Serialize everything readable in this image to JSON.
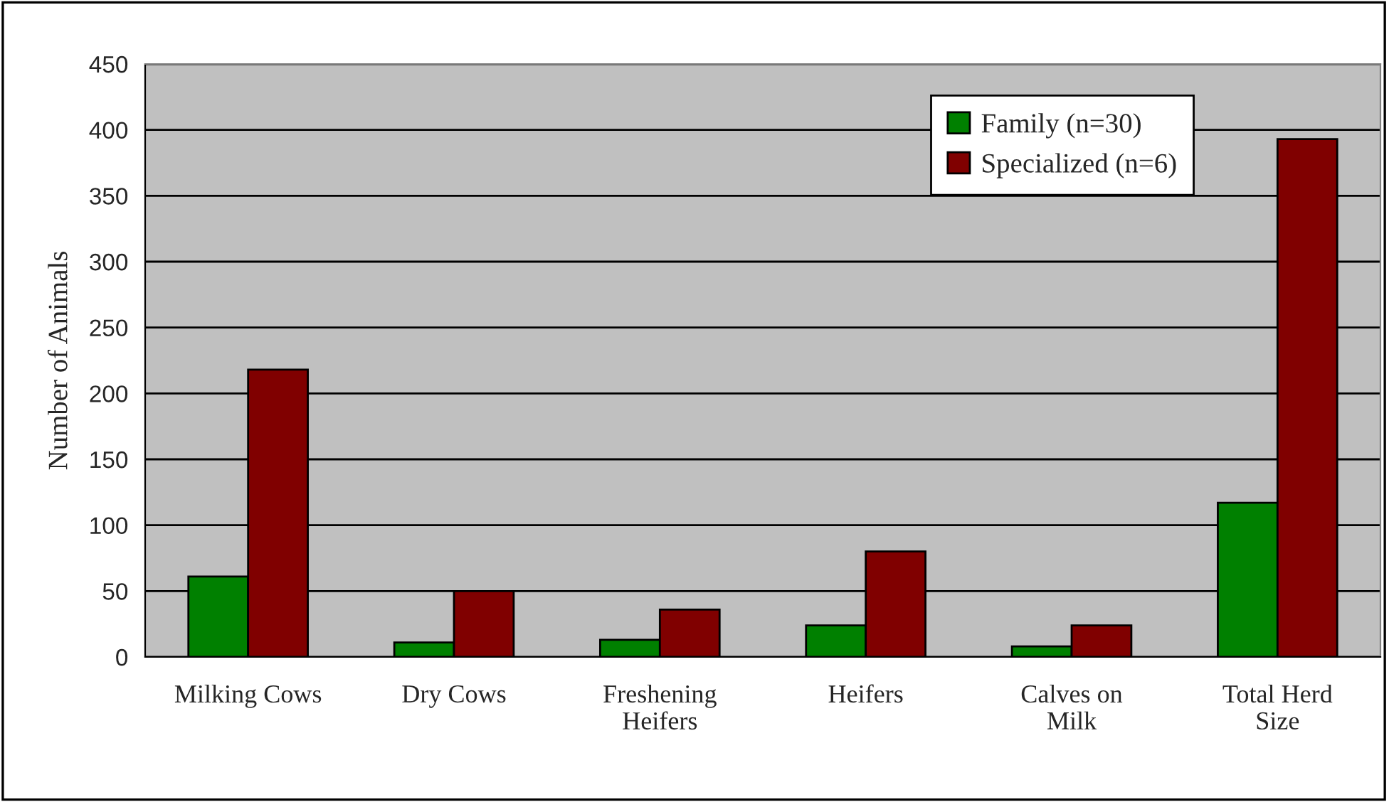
{
  "chart_data": {
    "type": "bar",
    "ylabel": "Number of Animals",
    "categories": [
      "Milking Cows",
      "Dry Cows",
      "Freshening\nHeifers",
      "Heifers",
      "Calves on\nMilk",
      "Total Herd\nSize"
    ],
    "series": [
      {
        "name": "Family (n=30)",
        "color": "#008000",
        "values": [
          61,
          11,
          13,
          24,
          8,
          117
        ]
      },
      {
        "name": "Specialized (n=6)",
        "color": "#800000",
        "values": [
          218,
          50,
          36,
          80,
          24,
          393
        ]
      }
    ],
    "ylim": [
      0,
      450
    ],
    "yticks": [
      0,
      50,
      100,
      150,
      200,
      250,
      300,
      350,
      400,
      450
    ],
    "grid": "y",
    "legend": "top right"
  }
}
